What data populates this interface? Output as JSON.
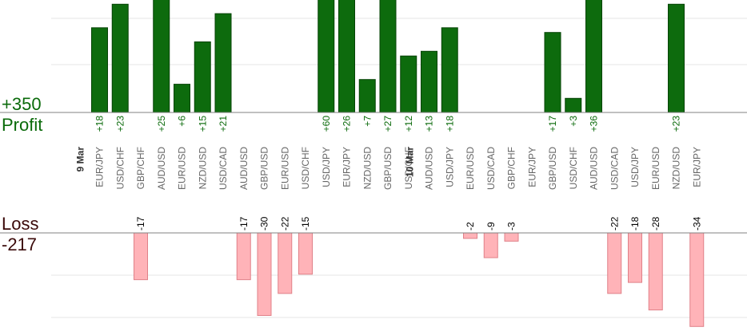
{
  "colors": {
    "profit_fill": "#0d6b0d",
    "profit_stroke": "#064306",
    "profit_text": "#0a6a0a",
    "loss_fill": "#ffb3b8",
    "loss_stroke": "#e08088",
    "loss_text": "#3b0a0a",
    "grid": "#e6e6e6",
    "axis": "#808080",
    "tick_label": "#666666",
    "date_label": "#333333"
  },
  "labels": {
    "profit_total": "+350",
    "profit_word": "Profit",
    "loss_word": "Loss",
    "loss_total": "-217"
  },
  "chart_data": {
    "type": "bar",
    "title": "",
    "grid": true,
    "profit_ylim": [
      0,
      40
    ],
    "loss_ylim": [
      -34,
      0
    ],
    "date_markers": [
      {
        "label": "9 Mar",
        "before_index": 0
      },
      {
        "label": "10 Mar",
        "before_index": 16
      }
    ],
    "trades": [
      {
        "pair": "EUR/JPY",
        "value": 18,
        "value_label": "+18"
      },
      {
        "pair": "USD/CHF",
        "value": 23,
        "value_label": "+23"
      },
      {
        "pair": "GBP/CHF",
        "value": -17,
        "value_label": "-17"
      },
      {
        "pair": "AUD/USD",
        "value": 25,
        "value_label": "+25"
      },
      {
        "pair": "EUR/USD",
        "value": 6,
        "value_label": "+6"
      },
      {
        "pair": "NZD/USD",
        "value": 15,
        "value_label": "+15"
      },
      {
        "pair": "USD/CAD",
        "value": 21,
        "value_label": "+21"
      },
      {
        "pair": "AUD/USD",
        "value": -17,
        "value_label": "-17"
      },
      {
        "pair": "GBP/USD",
        "value": -30,
        "value_label": "-30"
      },
      {
        "pair": "EUR/USD",
        "value": -22,
        "value_label": "-22"
      },
      {
        "pair": "USD/CHF",
        "value": -15,
        "value_label": "-15"
      },
      {
        "pair": "USD/JPY",
        "value": 60,
        "value_label": "+60"
      },
      {
        "pair": "EUR/JPY",
        "value": 26,
        "value_label": "+26"
      },
      {
        "pair": "NZD/USD",
        "value": 7,
        "value_label": "+7"
      },
      {
        "pair": "GBP/USD",
        "value": 27,
        "value_label": "+27"
      },
      {
        "pair": "USD/CHF",
        "value": 12,
        "value_label": "+12"
      },
      {
        "pair": "AUD/USD",
        "value": 13,
        "value_label": "+13"
      },
      {
        "pair": "USD/JPY",
        "value": 18,
        "value_label": "+18"
      },
      {
        "pair": "EUR/USD",
        "value": -2,
        "value_label": "-2"
      },
      {
        "pair": "USD/CAD",
        "value": -9,
        "value_label": "-9"
      },
      {
        "pair": "GBP/CHF",
        "value": -3,
        "value_label": "-3"
      },
      {
        "pair": "EUR/JPY",
        "value": null,
        "value_label": ""
      },
      {
        "pair": "GBP/USD",
        "value": 17,
        "value_label": "+17"
      },
      {
        "pair": "USD/CHF",
        "value": 3,
        "value_label": "+3"
      },
      {
        "pair": "AUD/USD",
        "value": 36,
        "value_label": "+36"
      },
      {
        "pair": "USD/CAD",
        "value": -22,
        "value_label": "-22"
      },
      {
        "pair": "USD/JPY",
        "value": -18,
        "value_label": "-18"
      },
      {
        "pair": "EUR/USD",
        "value": -28,
        "value_label": "-28"
      },
      {
        "pair": "NZD/USD",
        "value": 23,
        "value_label": "+23"
      },
      {
        "pair": "EUR/JPY",
        "value": -34,
        "value_label": "-34"
      }
    ]
  }
}
